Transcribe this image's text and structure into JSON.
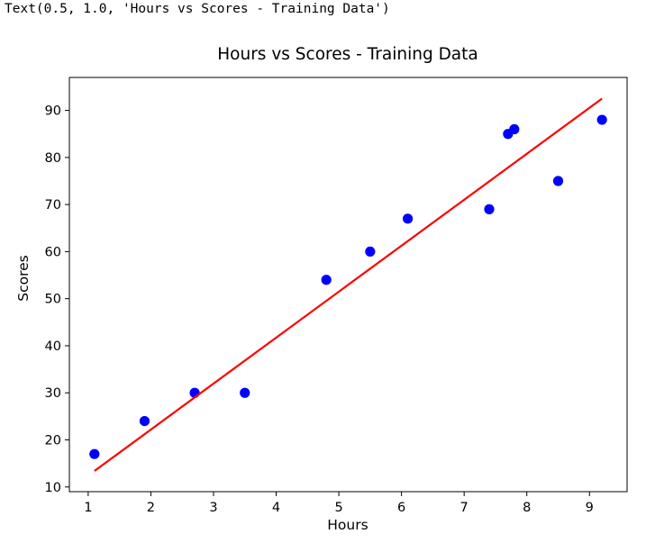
{
  "output_text": "Text(0.5, 1.0, 'Hours vs Scores - Training Data')",
  "chart_data": {
    "type": "scatter",
    "title": "Hours vs Scores - Training Data",
    "xlabel": "Hours",
    "ylabel": "Scores",
    "xlim": [
      0.7,
      9.6
    ],
    "ylim": [
      9,
      97
    ],
    "xticks": [
      1,
      2,
      3,
      4,
      5,
      6,
      7,
      8,
      9
    ],
    "yticks": [
      10,
      20,
      30,
      40,
      50,
      60,
      70,
      80,
      90
    ],
    "grid": false,
    "series": [
      {
        "kind": "scatter",
        "color": "#0000ff",
        "points": [
          {
            "x": 1.1,
            "y": 17
          },
          {
            "x": 1.9,
            "y": 24
          },
          {
            "x": 2.7,
            "y": 30
          },
          {
            "x": 3.5,
            "y": 30
          },
          {
            "x": 4.8,
            "y": 54
          },
          {
            "x": 5.5,
            "y": 60
          },
          {
            "x": 6.1,
            "y": 67
          },
          {
            "x": 7.4,
            "y": 69
          },
          {
            "x": 7.7,
            "y": 85
          },
          {
            "x": 7.8,
            "y": 86
          },
          {
            "x": 8.5,
            "y": 75
          },
          {
            "x": 9.2,
            "y": 88
          }
        ]
      },
      {
        "kind": "line",
        "color": "#ff0000",
        "points": [
          {
            "x": 1.1,
            "y": 13.4
          },
          {
            "x": 9.2,
            "y": 92.5
          }
        ]
      }
    ]
  }
}
